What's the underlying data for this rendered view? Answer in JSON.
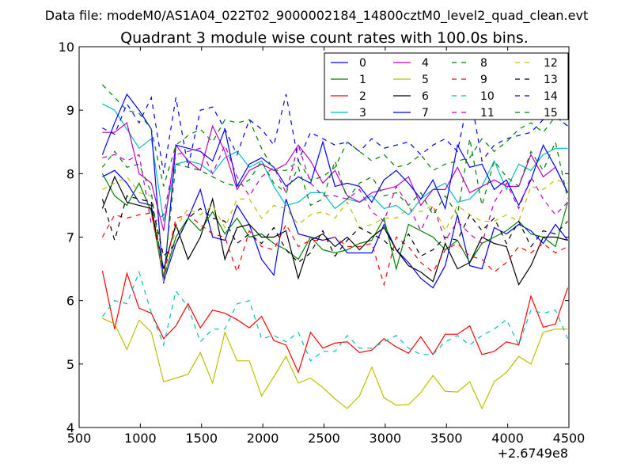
{
  "suptitle": "Data file: modeM0/AS1A04_022T02_9000002184_14800cztM0_level2_quad_clean.evt",
  "chart_data": {
    "type": "line",
    "title": "Quadrant 3 module wise count rates with 100.0s bins.",
    "xlabel": "",
    "ylabel": "",
    "x_offset_label": "+2.6749e8",
    "xlim": [
      500,
      4500
    ],
    "ylim": [
      4,
      10
    ],
    "xticks": [
      500,
      1000,
      1500,
      2000,
      2500,
      3000,
      3500,
      4000,
      4500
    ],
    "yticks": [
      4,
      5,
      6,
      7,
      8,
      9,
      10
    ],
    "legend_position": "top-right",
    "x": [
      690,
      790,
      890,
      990,
      1090,
      1190,
      1290,
      1390,
      1490,
      1590,
      1690,
      1790,
      1890,
      1990,
      2090,
      2190,
      2290,
      2390,
      2490,
      2590,
      2690,
      2790,
      2890,
      2990,
      3090,
      3190,
      3290,
      3390,
      3490,
      3590,
      3690,
      3790,
      3890,
      3990,
      4090,
      4190,
      4290,
      4390,
      4490
    ],
    "series": [
      {
        "name": "0",
        "color": "#0000ff",
        "dash": "solid",
        "values": [
          7.95,
          8.05,
          7.85,
          7.55,
          7.5,
          6.3,
          6.9,
          7.3,
          7.75,
          7.0,
          6.95,
          7.5,
          7.2,
          6.65,
          6.4,
          7.6,
          7.05,
          7.0,
          6.95,
          7.0,
          6.75,
          6.75,
          6.75,
          7.2,
          6.8,
          6.6,
          6.35,
          6.2,
          6.55,
          7.35,
          6.55,
          6.5,
          7.15,
          7.05,
          7.2,
          7.1,
          6.9,
          7.2,
          6.95
        ]
      },
      {
        "name": "1",
        "color": "#008000",
        "dash": "solid",
        "values": [
          8.0,
          7.65,
          7.5,
          7.85,
          7.4,
          6.35,
          7.0,
          7.3,
          7.1,
          7.4,
          7.05,
          7.3,
          7.0,
          7.05,
          6.9,
          6.8,
          6.65,
          7.0,
          6.8,
          6.75,
          6.8,
          6.9,
          6.95,
          7.3,
          6.5,
          7.2,
          7.1,
          7.0,
          6.8,
          6.95,
          6.6,
          6.9,
          7.0,
          7.1,
          7.25,
          7.05,
          7.0,
          6.85,
          7.55
        ]
      },
      {
        "name": "2",
        "color": "#ff0000",
        "dash": "solid",
        "values": [
          6.47,
          5.55,
          6.43,
          5.88,
          5.8,
          5.4,
          5.6,
          5.95,
          5.57,
          5.85,
          5.8,
          5.7,
          5.57,
          5.75,
          5.37,
          5.3,
          4.87,
          5.5,
          5.25,
          5.33,
          5.35,
          5.18,
          5.22,
          5.4,
          5.27,
          5.17,
          5.43,
          5.15,
          5.47,
          5.47,
          5.6,
          5.15,
          5.2,
          5.35,
          5.3,
          6.07,
          5.58,
          5.63,
          6.2
        ]
      },
      {
        "name": "3",
        "color": "#00bfbf",
        "dash": "solid",
        "values": [
          9.1,
          9.0,
          8.7,
          8.4,
          8.55,
          7.25,
          8.15,
          8.2,
          8.15,
          8.0,
          8.25,
          8.35,
          8.1,
          8.2,
          7.8,
          7.5,
          7.55,
          7.7,
          7.7,
          7.45,
          7.6,
          7.55,
          7.65,
          7.45,
          7.5,
          7.35,
          7.6,
          7.75,
          7.85,
          7.55,
          7.6,
          7.8,
          8.2,
          7.75,
          8.15,
          8.05,
          8.3,
          8.4,
          8.4
        ]
      },
      {
        "name": "4",
        "color": "#bf00bf",
        "dash": "solid",
        "values": [
          8.65,
          8.65,
          8.8,
          8.0,
          7.85,
          7.1,
          8.45,
          8.2,
          8.05,
          8.75,
          8.35,
          7.75,
          8.05,
          8.15,
          8.05,
          8.15,
          8.45,
          8.2,
          7.85,
          8.05,
          7.65,
          7.55,
          7.7,
          7.75,
          7.8,
          7.95,
          7.5,
          7.75,
          7.75,
          8.1,
          7.7,
          7.8,
          7.9,
          7.8,
          7.8,
          8.3,
          7.95,
          8.1,
          7.7
        ]
      },
      {
        "name": "5",
        "color": "#bfbf00",
        "dash": "solid",
        "values": [
          5.72,
          5.63,
          5.23,
          5.69,
          5.5,
          4.72,
          4.78,
          4.84,
          5.18,
          4.7,
          5.5,
          5.05,
          5.05,
          4.5,
          4.8,
          5.12,
          4.7,
          4.78,
          4.63,
          4.45,
          4.3,
          4.5,
          4.95,
          4.47,
          4.35,
          4.36,
          4.55,
          4.82,
          4.57,
          4.56,
          4.72,
          4.3,
          4.72,
          4.87,
          5.12,
          5.0,
          5.5,
          5.55,
          5.55
        ]
      },
      {
        "name": "6",
        "color": "#000000",
        "dash": "solid",
        "values": [
          7.45,
          7.95,
          7.55,
          7.5,
          7.45,
          6.5,
          7.2,
          6.65,
          7.0,
          7.6,
          6.65,
          7.15,
          7.2,
          7.0,
          7.0,
          7.1,
          6.35,
          6.95,
          7.05,
          6.85,
          7.0,
          6.8,
          7.0,
          7.15,
          6.8,
          6.55,
          6.45,
          6.3,
          6.9,
          6.5,
          6.6,
          7.0,
          6.9,
          6.85,
          6.25,
          6.55,
          7.0,
          7.0,
          6.95
        ]
      },
      {
        "name": "7",
        "color": "#0000ff",
        "dash": "solid",
        "values": [
          8.3,
          8.8,
          9.25,
          9.0,
          8.7,
          6.27,
          8.45,
          8.4,
          8.35,
          8.2,
          8.7,
          7.8,
          8.15,
          8.25,
          8.1,
          7.8,
          7.95,
          7.85,
          8.5,
          7.8,
          7.85,
          7.8,
          7.55,
          7.9,
          8.05,
          7.85,
          7.6,
          7.9,
          7.45,
          8.45,
          8.1,
          8.15,
          7.75,
          7.9,
          7.5,
          7.9,
          8.45,
          8.1,
          7.7
        ]
      },
      {
        "name": "8",
        "color": "#008000",
        "dash": "dashed",
        "values": [
          9.4,
          9.2,
          9.0,
          8.95,
          8.7,
          7.8,
          8.45,
          8.6,
          8.7,
          8.5,
          8.85,
          8.8,
          8.85,
          8.4,
          8.05,
          8.05,
          8.2,
          7.9,
          7.95,
          8.1,
          8.5,
          8.35,
          8.2,
          8.3,
          8.1,
          8.15,
          8.3,
          8.05,
          8.15,
          8.2,
          8.25,
          8.55,
          8.35,
          8.5,
          8.7,
          8.8,
          8.65,
          8.9,
          8.75
        ]
      },
      {
        "name": "9",
        "color": "#ff0000",
        "dash": "dashed",
        "values": [
          7.0,
          7.35,
          7.3,
          7.35,
          7.38,
          6.37,
          7.3,
          7.35,
          7.2,
          7.05,
          7.0,
          6.45,
          7.1,
          6.85,
          6.8,
          7.2,
          6.85,
          6.95,
          6.95,
          7.0,
          6.85,
          6.85,
          6.9,
          6.25,
          7.0,
          6.85,
          6.6,
          6.45,
          6.8,
          6.9,
          6.7,
          6.65,
          6.45,
          6.6,
          6.85,
          6.75,
          6.9,
          6.75,
          6.85
        ]
      },
      {
        "name": "10",
        "color": "#00bfbf",
        "dash": "dashed",
        "values": [
          5.75,
          6.0,
          5.95,
          6.45,
          5.8,
          5.3,
          6.15,
          5.9,
          5.35,
          5.55,
          5.55,
          5.95,
          6.0,
          5.4,
          5.45,
          5.35,
          5.5,
          5.05,
          5.2,
          5.2,
          5.45,
          5.25,
          5.25,
          5.35,
          5.45,
          5.25,
          5.15,
          5.15,
          5.35,
          5.45,
          5.3,
          5.45,
          5.55,
          5.7,
          5.3,
          5.85,
          5.8,
          5.85,
          5.4
        ]
      },
      {
        "name": "11",
        "color": "#bf00bf",
        "dash": "dashed",
        "values": [
          8.25,
          8.3,
          8.2,
          8.3,
          7.2,
          7.35,
          8.3,
          8.35,
          8.4,
          8.0,
          8.45,
          7.95,
          7.65,
          7.95,
          8.1,
          7.7,
          8.45,
          7.85,
          7.65,
          7.65,
          7.6,
          7.75,
          7.4,
          7.25,
          7.8,
          7.5,
          7.1,
          7.5,
          6.95,
          7.25,
          7.05,
          6.9,
          7.55,
          7.85,
          7.45,
          7.95,
          7.6,
          7.35,
          7.55
        ]
      },
      {
        "name": "12",
        "color": "#bfbf00",
        "dash": "dashed",
        "values": [
          7.75,
          7.85,
          7.95,
          7.7,
          7.65,
          6.3,
          7.15,
          7.45,
          7.35,
          7.5,
          7.15,
          7.6,
          7.6,
          7.3,
          7.5,
          7.45,
          7.2,
          7.35,
          7.4,
          7.3,
          7.55,
          7.15,
          7.2,
          7.3,
          7.3,
          7.45,
          7.4,
          7.5,
          7.1,
          7.5,
          7.35,
          7.25,
          7.25,
          7.35,
          7.25,
          7.8,
          7.75,
          7.9,
          7.85
        ]
      },
      {
        "name": "13",
        "color": "#000000",
        "dash": "dashed",
        "values": [
          7.6,
          6.95,
          7.65,
          7.6,
          7.55,
          6.7,
          6.9,
          7.3,
          7.45,
          7.3,
          7.25,
          6.9,
          7.05,
          6.9,
          7.15,
          6.8,
          6.6,
          6.75,
          7.1,
          6.7,
          6.95,
          7.15,
          7.05,
          6.95,
          6.75,
          7.05,
          6.7,
          6.8,
          7.0,
          6.95,
          7.35,
          7.1,
          7.3,
          6.9,
          7.25,
          6.85,
          7.1,
          7.05,
          7.25
        ]
      },
      {
        "name": "14",
        "color": "#0000ff",
        "dash": "dashed",
        "values": [
          8.72,
          8.62,
          9.1,
          8.8,
          9.2,
          8.0,
          9.2,
          8.1,
          9.0,
          9.05,
          8.7,
          8.3,
          8.85,
          8.7,
          8.45,
          9.25,
          8.2,
          8.65,
          8.55,
          8.45,
          8.5,
          8.35,
          8.55,
          8.4,
          8.45,
          8.5,
          8.3,
          8.45,
          8.55,
          8.35,
          9.3,
          8.2,
          8.45,
          8.55,
          8.6,
          8.65,
          8.85,
          8.9,
          8.75
        ]
      },
      {
        "name": "15",
        "color": "#008000",
        "dash": "dashed",
        "values": [
          8.1,
          8.35,
          8.1,
          8.15,
          7.7,
          6.35,
          8.15,
          8.1,
          8.05,
          7.95,
          7.85,
          7.8,
          7.9,
          8.2,
          7.85,
          7.7,
          8.1,
          7.5,
          7.6,
          8.2,
          7.6,
          7.85,
          7.95,
          7.65,
          7.7,
          7.5,
          7.7,
          7.35,
          7.65,
          7.35,
          8.55,
          7.5,
          8.2,
          7.95,
          7.8,
          8.35,
          8.05,
          8.5,
          7.6
        ]
      }
    ]
  }
}
